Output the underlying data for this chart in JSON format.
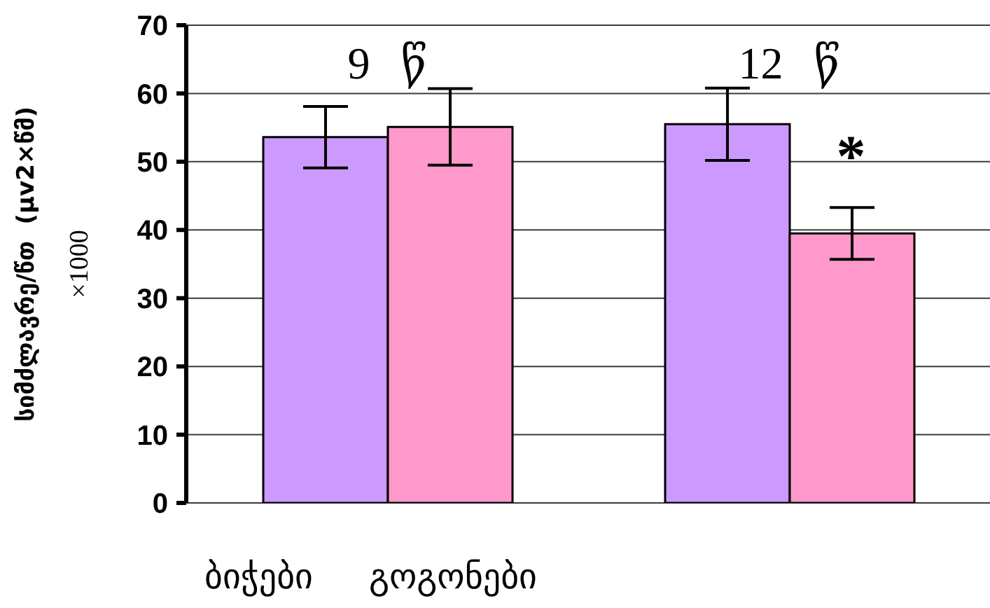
{
  "chart_data": {
    "type": "bar",
    "categories": [
      "9 წ",
      "12 წ"
    ],
    "series": [
      {
        "name": "ბიჭები",
        "color": "#cc99ff",
        "values": [
          53.6,
          55.5
        ],
        "errors": [
          4.5,
          5.3
        ]
      },
      {
        "name": "გოგონები",
        "color": "#ff99cc",
        "values": [
          55.1,
          39.5
        ],
        "errors": [
          5.6,
          3.8
        ]
      }
    ],
    "ylabel": "სიმძლავრე/წთ  (μv2×წმ)\n×1000",
    "ylim": [
      0,
      70
    ],
    "yticks": [
      0,
      10,
      20,
      30,
      40,
      50,
      60,
      70
    ],
    "grid": "y",
    "legend": "bottom",
    "annotations": [
      {
        "text": "*",
        "x": "12 წ",
        "y": 52
      }
    ]
  }
}
